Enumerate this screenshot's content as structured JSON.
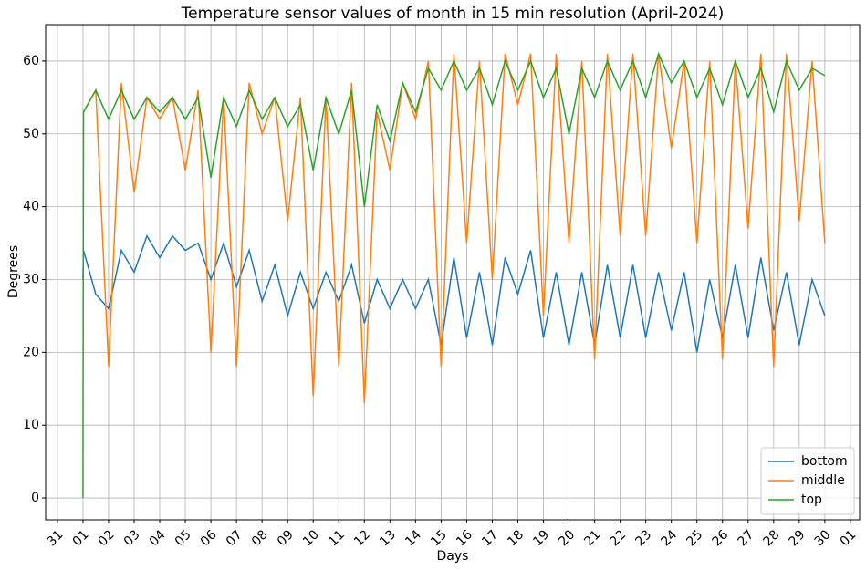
{
  "chart_data": {
    "type": "line",
    "title": "Temperature sensor values of month in 15 min resolution (April-2024)",
    "xlabel": "Days",
    "ylabel": "Degrees",
    "x": [
      1.0,
      1.02,
      1.5,
      2,
      2.5,
      3,
      3.5,
      4,
      4.5,
      5,
      5.5,
      6,
      6.5,
      7,
      7.5,
      8,
      8.5,
      9,
      9.5,
      10,
      10.5,
      11,
      11.5,
      12,
      12.5,
      13,
      13.5,
      14,
      14.5,
      15,
      15.5,
      16,
      16.5,
      17,
      17.5,
      18,
      18.5,
      19,
      19.5,
      20,
      20.5,
      21,
      21.5,
      22,
      22.5,
      23,
      23.5,
      24,
      24.5,
      25,
      25.5,
      26,
      26.5,
      27,
      27.5,
      28,
      28.5,
      29,
      29.5,
      30
    ],
    "series": [
      {
        "name": "bottom",
        "color": "#1f77b4",
        "values": [
          30,
          34,
          28,
          26,
          34,
          31,
          36,
          33,
          36,
          34,
          35,
          30,
          35,
          29,
          34,
          27,
          32,
          25,
          31,
          26,
          31,
          27,
          32,
          24,
          30,
          26,
          30,
          26,
          30,
          21,
          33,
          22,
          31,
          21,
          33,
          28,
          34,
          22,
          31,
          21,
          31,
          21,
          32,
          22,
          32,
          22,
          31,
          23,
          31,
          20,
          30,
          22,
          32,
          22,
          33,
          23,
          31,
          21,
          30,
          25
        ]
      },
      {
        "name": "middle",
        "color": "#ff7f0e",
        "values": [
          53,
          53,
          56,
          18,
          57,
          42,
          55,
          52,
          55,
          45,
          56,
          20,
          55,
          18,
          57,
          50,
          55,
          38,
          55,
          14,
          55,
          18,
          57,
          13,
          53,
          45,
          57,
          52,
          60,
          18,
          61,
          35,
          60,
          30,
          61,
          54,
          61,
          25,
          61,
          35,
          60,
          19,
          61,
          36,
          61,
          36,
          61,
          48,
          60,
          35,
          60,
          19,
          60,
          37,
          61,
          18,
          61,
          38,
          60,
          35
        ]
      },
      {
        "name": "top",
        "color": "#2ca02c",
        "values": [
          0,
          53,
          56,
          52,
          56,
          52,
          55,
          53,
          55,
          52,
          55,
          44,
          55,
          51,
          56,
          52,
          55,
          51,
          54,
          45,
          55,
          50,
          56,
          40,
          54,
          49,
          57,
          53,
          59,
          56,
          60,
          56,
          59,
          54,
          60,
          56,
          60,
          55,
          59,
          50,
          59,
          55,
          60,
          56,
          60,
          55,
          61,
          57,
          60,
          55,
          59,
          54,
          60,
          55,
          59,
          53,
          60,
          56,
          59,
          58
        ]
      }
    ],
    "xlim": [
      -0.46,
      31.36
    ],
    "xticks": [
      {
        "value": 0,
        "label": "31"
      },
      {
        "value": 1,
        "label": "01"
      },
      {
        "value": 2,
        "label": "02"
      },
      {
        "value": 3,
        "label": "03"
      },
      {
        "value": 4,
        "label": "04"
      },
      {
        "value": 5,
        "label": "05"
      },
      {
        "value": 6,
        "label": "06"
      },
      {
        "value": 7,
        "label": "07"
      },
      {
        "value": 8,
        "label": "08"
      },
      {
        "value": 9,
        "label": "09"
      },
      {
        "value": 10,
        "label": "10"
      },
      {
        "value": 11,
        "label": "11"
      },
      {
        "value": 12,
        "label": "12"
      },
      {
        "value": 13,
        "label": "13"
      },
      {
        "value": 14,
        "label": "14"
      },
      {
        "value": 15,
        "label": "15"
      },
      {
        "value": 16,
        "label": "16"
      },
      {
        "value": 17,
        "label": "17"
      },
      {
        "value": 18,
        "label": "18"
      },
      {
        "value": 19,
        "label": "19"
      },
      {
        "value": 20,
        "label": "20"
      },
      {
        "value": 21,
        "label": "21"
      },
      {
        "value": 22,
        "label": "22"
      },
      {
        "value": 23,
        "label": "23"
      },
      {
        "value": 24,
        "label": "24"
      },
      {
        "value": 25,
        "label": "25"
      },
      {
        "value": 26,
        "label": "26"
      },
      {
        "value": 27,
        "label": "27"
      },
      {
        "value": 28,
        "label": "28"
      },
      {
        "value": 29,
        "label": "29"
      },
      {
        "value": 30,
        "label": "30"
      },
      {
        "value": 31,
        "label": "01"
      }
    ],
    "ylim": [
      -3,
      65
    ],
    "yticks": [
      0,
      10,
      20,
      30,
      40,
      50,
      60
    ],
    "grid": true,
    "legend": "lower right"
  }
}
